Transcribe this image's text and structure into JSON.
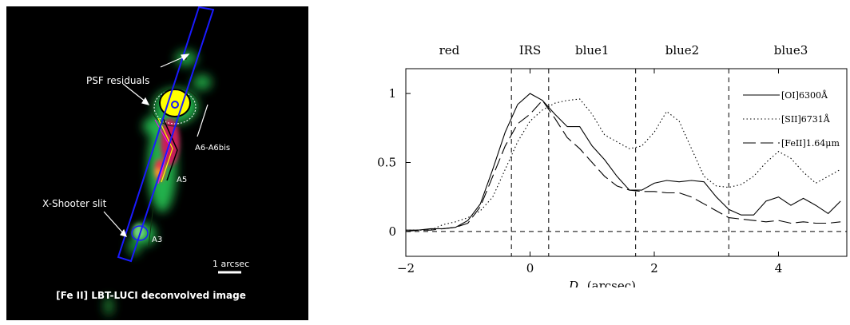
{
  "image_panel": {
    "labels": {
      "psf_residuals": "PSF residuals",
      "a6": "A6-A6bis",
      "a5": "A5",
      "xshooter": "X-Shooter slit",
      "a3": "A3",
      "scale": "1 arcsec",
      "caption": "[Fe II] LBT-LUCI deconvolved image"
    },
    "colors": {
      "background": "#000000",
      "emission": "#22b14c",
      "peak": "#ffff00",
      "slit": "#1a1aff"
    }
  },
  "chart_data": {
    "type": "line",
    "xlabel_var": "D",
    "xlabel_unit": "(arcsec)",
    "ylabel": "",
    "xlim": [
      -2,
      5.1
    ],
    "ylim": [
      -0.18,
      1.18
    ],
    "xticks": [
      -2,
      0,
      2,
      4
    ],
    "xtick_labels": [
      "−2",
      "0",
      "2",
      "4"
    ],
    "yticks": [
      0,
      0.5,
      1
    ],
    "ytick_labels": [
      "0",
      "0.5",
      "1"
    ],
    "legend_position": "right",
    "regions": [
      {
        "label": "red",
        "x": -1.3
      },
      {
        "label": "IRS",
        "x": 0.0
      },
      {
        "label": "blue1",
        "x": 1.0
      },
      {
        "label": "blue2",
        "x": 2.45
      },
      {
        "label": "blue3",
        "x": 4.2
      }
    ],
    "vlines": [
      -0.3,
      0.3,
      1.7,
      3.2
    ],
    "hline": 0,
    "series": [
      {
        "name": "[OI]6300Å",
        "dash": "solid",
        "x": [
          -2.0,
          -1.8,
          -1.6,
          -1.4,
          -1.2,
          -1.0,
          -0.8,
          -0.6,
          -0.4,
          -0.2,
          0.0,
          0.2,
          0.4,
          0.6,
          0.8,
          1.0,
          1.2,
          1.4,
          1.6,
          1.8,
          2.0,
          2.2,
          2.4,
          2.6,
          2.8,
          3.0,
          3.2,
          3.4,
          3.6,
          3.8,
          4.0,
          4.2,
          4.4,
          4.6,
          4.8,
          5.0
        ],
        "y": [
          0.01,
          0.01,
          0.02,
          0.02,
          0.03,
          0.08,
          0.2,
          0.45,
          0.72,
          0.92,
          1.0,
          0.95,
          0.85,
          0.76,
          0.76,
          0.62,
          0.52,
          0.4,
          0.3,
          0.3,
          0.35,
          0.37,
          0.36,
          0.37,
          0.36,
          0.25,
          0.16,
          0.12,
          0.12,
          0.22,
          0.25,
          0.19,
          0.24,
          0.19,
          0.13,
          0.22
        ]
      },
      {
        "name": "[SII]6731Å",
        "dash": "dotted",
        "x": [
          -2.0,
          -1.8,
          -1.6,
          -1.4,
          -1.2,
          -1.0,
          -0.8,
          -0.6,
          -0.4,
          -0.2,
          0.0,
          0.2,
          0.4,
          0.6,
          0.8,
          1.0,
          1.2,
          1.4,
          1.6,
          1.8,
          2.0,
          2.2,
          2.4,
          2.6,
          2.8,
          3.0,
          3.2,
          3.4,
          3.6,
          3.8,
          4.0,
          4.2,
          4.4,
          4.6,
          4.8,
          5.0
        ],
        "y": [
          0.01,
          0.01,
          0.01,
          0.05,
          0.07,
          0.1,
          0.15,
          0.25,
          0.45,
          0.65,
          0.8,
          0.88,
          0.93,
          0.95,
          0.96,
          0.85,
          0.7,
          0.65,
          0.6,
          0.62,
          0.72,
          0.87,
          0.8,
          0.6,
          0.4,
          0.33,
          0.32,
          0.34,
          0.4,
          0.5,
          0.58,
          0.53,
          0.43,
          0.35,
          0.4,
          0.45
        ]
      },
      {
        "name": "[FeII]1.64μm",
        "dash": "longdash",
        "x": [
          -2.0,
          -1.8,
          -1.6,
          -1.4,
          -1.2,
          -1.0,
          -0.8,
          -0.6,
          -0.4,
          -0.2,
          0.0,
          0.2,
          0.4,
          0.6,
          0.8,
          1.0,
          1.2,
          1.4,
          1.6,
          1.8,
          2.0,
          2.2,
          2.4,
          2.6,
          2.8,
          3.0,
          3.2,
          3.4,
          3.6,
          3.8,
          4.0,
          4.2,
          4.4,
          4.6,
          4.8,
          5.0
        ],
        "y": [
          0.0,
          0.01,
          0.01,
          0.02,
          0.03,
          0.06,
          0.18,
          0.4,
          0.62,
          0.78,
          0.85,
          0.95,
          0.82,
          0.68,
          0.6,
          0.5,
          0.4,
          0.33,
          0.3,
          0.29,
          0.29,
          0.28,
          0.28,
          0.25,
          0.2,
          0.15,
          0.1,
          0.09,
          0.08,
          0.07,
          0.08,
          0.06,
          0.07,
          0.06,
          0.06,
          0.07
        ]
      }
    ]
  }
}
